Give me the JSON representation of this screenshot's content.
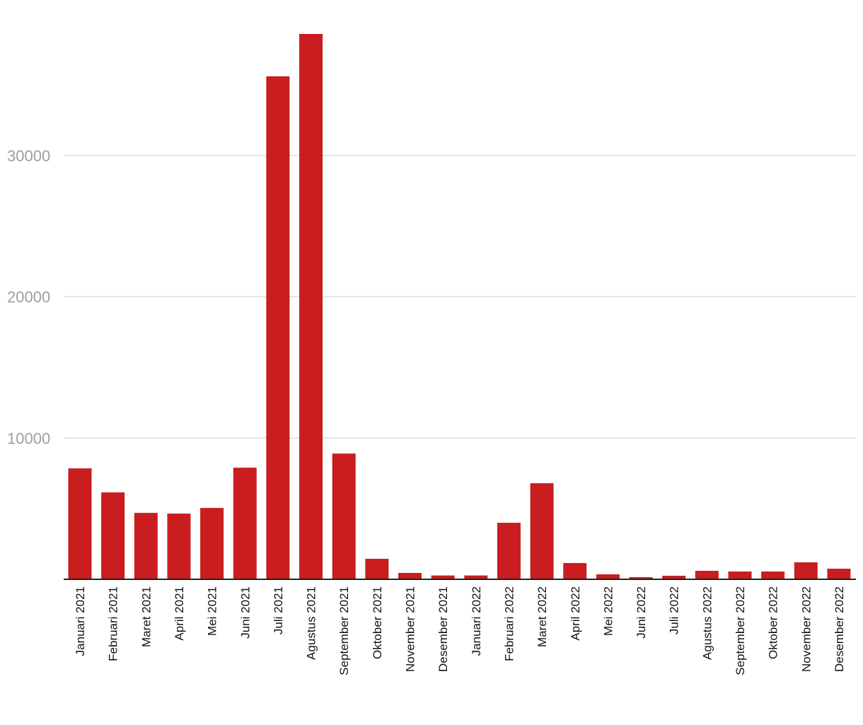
{
  "chart_data": {
    "type": "bar",
    "title": "",
    "xlabel": "",
    "ylabel": "",
    "ylim": [
      0,
      38600
    ],
    "yticks": [
      10000,
      20000,
      30000
    ],
    "grid": true,
    "legend": "none",
    "bar_color": "#c91d1f",
    "categories": [
      "Januari 2021",
      "Februari 2021",
      "Maret 2021",
      "April 2021",
      "Mei 2021",
      "Juni 2021",
      "Juli 2021",
      "Agustus 2021",
      "September 2021",
      "Oktober 2021",
      "November 2021",
      "Desember 2021",
      "Januari 2022",
      "Februari 2022",
      "Maret 2022",
      "April 2022",
      "Mei 2022",
      "Juni 2022",
      "Juli 2022",
      "Agustus 2022",
      "September 2022",
      "Oktober 2022",
      "November 2022",
      "Desember 2022"
    ],
    "values": [
      7850,
      6150,
      4700,
      4650,
      5050,
      7900,
      35600,
      38600,
      8900,
      1450,
      450,
      270,
      270,
      4000,
      6800,
      1150,
      350,
      150,
      250,
      600,
      550,
      550,
      1200,
      750
    ]
  }
}
